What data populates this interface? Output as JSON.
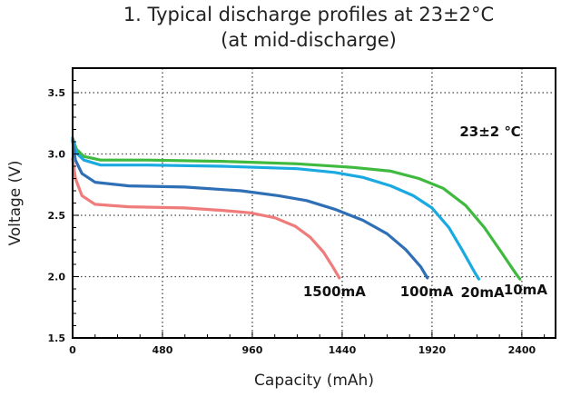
{
  "chart_data": {
    "type": "line",
    "title": "1. Typical discharge profiles at 23±2°C",
    "subtitle": "(at mid-discharge)",
    "xlabel": "Capacity (mAh)",
    "ylabel": "Voltage (V)",
    "xlim": [
      0,
      2580
    ],
    "ylim": [
      1.5,
      3.7
    ],
    "x_ticks": [
      0,
      480,
      960,
      1440,
      1920,
      2400
    ],
    "y_ticks": [
      1.5,
      2.0,
      2.5,
      3.0,
      3.5
    ],
    "x_tick_labels": [
      "0",
      "480",
      "960",
      "1440",
      "1920",
      "2400"
    ],
    "y_tick_labels": [
      "1.5",
      "2.0",
      "2.5",
      "3.0",
      "3.5"
    ],
    "grid": true,
    "annotation": "23±2  ℃",
    "series": [
      {
        "name": "10mA",
        "color": "#3fba3f",
        "points": [
          [
            0,
            3.13
          ],
          [
            20,
            3.04
          ],
          [
            60,
            2.98
          ],
          [
            150,
            2.95
          ],
          [
            400,
            2.95
          ],
          [
            800,
            2.94
          ],
          [
            1200,
            2.92
          ],
          [
            1500,
            2.89
          ],
          [
            1700,
            2.86
          ],
          [
            1850,
            2.8
          ],
          [
            1980,
            2.72
          ],
          [
            2100,
            2.58
          ],
          [
            2200,
            2.4
          ],
          [
            2290,
            2.2
          ],
          [
            2370,
            2.02
          ],
          [
            2390,
            1.98
          ]
        ]
      },
      {
        "name": "20mA",
        "color": "#1aa9e0",
        "points": [
          [
            0,
            3.13
          ],
          [
            20,
            3.01
          ],
          [
            60,
            2.95
          ],
          [
            150,
            2.91
          ],
          [
            400,
            2.91
          ],
          [
            800,
            2.9
          ],
          [
            1200,
            2.88
          ],
          [
            1400,
            2.85
          ],
          [
            1550,
            2.81
          ],
          [
            1700,
            2.74
          ],
          [
            1820,
            2.66
          ],
          [
            1920,
            2.56
          ],
          [
            2010,
            2.4
          ],
          [
            2080,
            2.22
          ],
          [
            2150,
            2.03
          ],
          [
            2170,
            1.98
          ]
        ]
      },
      {
        "name": "100mA",
        "color": "#2f6fb5",
        "points": [
          [
            0,
            3.11
          ],
          [
            15,
            2.95
          ],
          [
            50,
            2.84
          ],
          [
            120,
            2.77
          ],
          [
            300,
            2.74
          ],
          [
            600,
            2.73
          ],
          [
            900,
            2.7
          ],
          [
            1100,
            2.66
          ],
          [
            1250,
            2.62
          ],
          [
            1400,
            2.55
          ],
          [
            1550,
            2.46
          ],
          [
            1680,
            2.35
          ],
          [
            1780,
            2.22
          ],
          [
            1860,
            2.08
          ],
          [
            1895,
            1.99
          ]
        ]
      },
      {
        "name": "1500mA",
        "color": "#ef7b7b",
        "points": [
          [
            0,
            2.96
          ],
          [
            15,
            2.8
          ],
          [
            50,
            2.66
          ],
          [
            120,
            2.59
          ],
          [
            300,
            2.57
          ],
          [
            600,
            2.56
          ],
          [
            800,
            2.54
          ],
          [
            950,
            2.52
          ],
          [
            1080,
            2.48
          ],
          [
            1190,
            2.41
          ],
          [
            1270,
            2.32
          ],
          [
            1340,
            2.2
          ],
          [
            1390,
            2.08
          ],
          [
            1425,
            1.99
          ]
        ]
      }
    ]
  }
}
